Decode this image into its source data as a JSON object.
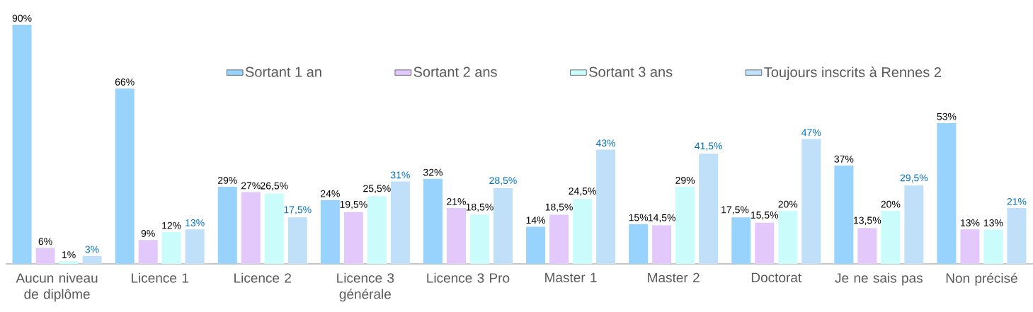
{
  "chart_data": {
    "type": "bar",
    "categories": [
      "Aucun niveau de diplôme",
      "Licence 1",
      "Licence 2",
      "Licence 3 générale",
      "Licence 3 Pro",
      "Master 1",
      "Master 2",
      "Doctorat",
      "Je ne sais pas",
      "Non précisé"
    ],
    "series": [
      {
        "name": "Sortant 1 an",
        "color": "#97d3fd",
        "values": [
          90,
          66,
          29,
          24,
          32,
          14,
          15,
          17.5,
          37,
          53
        ],
        "value_labels": [
          "90%",
          "66%",
          "29%",
          "24%",
          "32%",
          "14%",
          "15%",
          "17,5%",
          "37%",
          "53%"
        ]
      },
      {
        "name": "Sortant 2 ans",
        "color": "#e2c8fb",
        "values": [
          6,
          9,
          27,
          19.5,
          21,
          18.5,
          14.5,
          15.5,
          13.5,
          13
        ],
        "value_labels": [
          "6%",
          "9%",
          "27%",
          "19,5%",
          "21%",
          "18,5%",
          "14,5%",
          "15,5%",
          "13,5%",
          "13%"
        ]
      },
      {
        "name": "Sortant 3 ans",
        "color": "#cafcfc",
        "values": [
          1,
          12,
          26.5,
          25.5,
          18.5,
          24.5,
          29,
          20,
          20,
          13
        ],
        "value_labels": [
          "1%",
          "12%",
          "26,5%",
          "25,5%",
          "18,5%",
          "24,5%",
          "29%",
          "20%",
          "20%",
          "13%"
        ]
      },
      {
        "name": "Toujours inscrits à Rennes 2",
        "color": "#bfe0f8",
        "values": [
          3,
          13,
          17.5,
          31,
          28.5,
          43,
          41.5,
          47,
          29.5,
          21
        ],
        "value_labels": [
          "3%",
          "13%",
          "17,5%",
          "31%",
          "28,5%",
          "43%",
          "41,5%",
          "47%",
          "29,5%",
          "21%"
        ]
      }
    ],
    "ylim": [
      0,
      90
    ],
    "legend": "top"
  }
}
